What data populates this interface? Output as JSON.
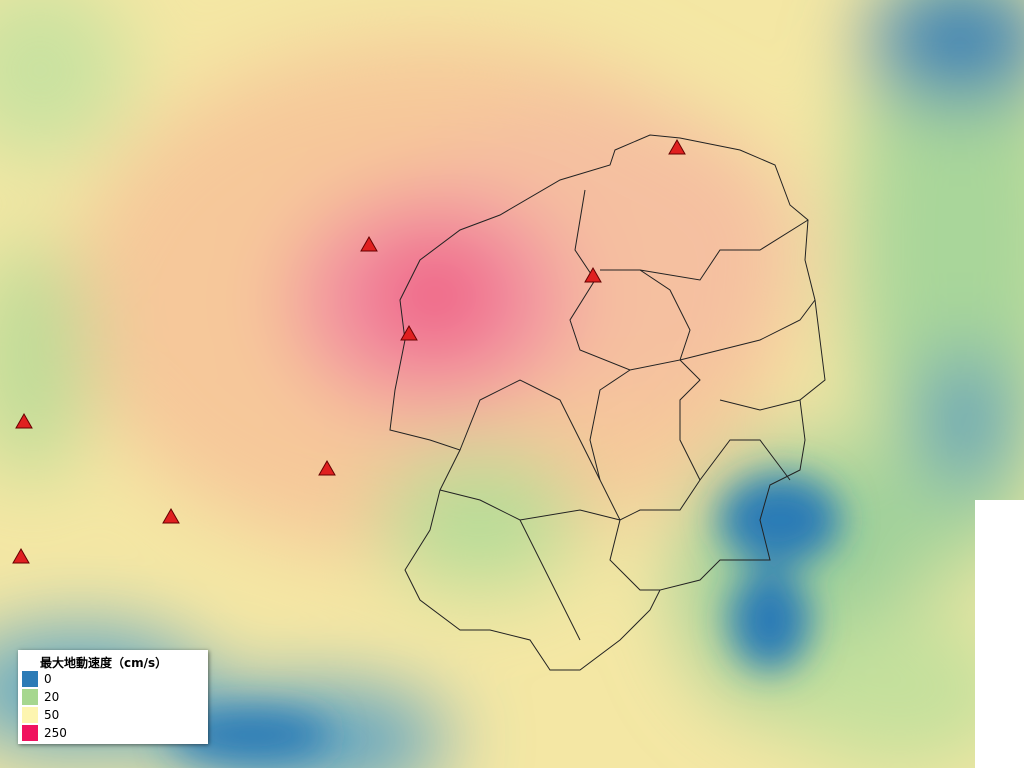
{
  "legend": {
    "title": "最大地動速度（cm/s）",
    "items": [
      {
        "label": "0",
        "color": "#2c7bb6"
      },
      {
        "label": "20",
        "color": "#a6d78f"
      },
      {
        "label": "50",
        "color": "#fdf5b0"
      },
      {
        "label": "250",
        "color": "#f0125f"
      }
    ]
  }
}
